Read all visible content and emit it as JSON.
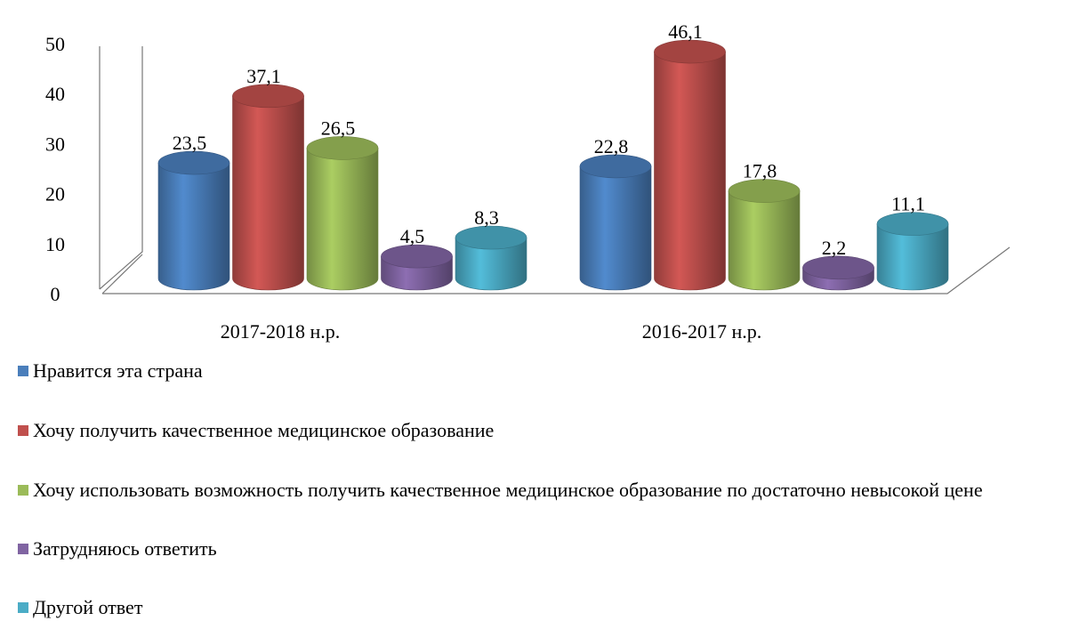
{
  "chart_data": {
    "type": "bar3d",
    "categories": [
      "2017-2018 н.р.",
      "2016-2017 н.р."
    ],
    "ylim": [
      0,
      50
    ],
    "yticks": [
      0,
      10,
      20,
      30,
      40,
      50
    ],
    "series": [
      {
        "name": "Нравится эта страна",
        "color": "#4a7ebb",
        "values": [
          23.5,
          22.8
        ],
        "value_labels": [
          "23,5",
          "22,8"
        ]
      },
      {
        "name": "Хочу получить качественное медицинское образование",
        "color": "#c0504d",
        "values": [
          37.1,
          46.1
        ],
        "value_labels": [
          "37,1",
          "46,1"
        ]
      },
      {
        "name": "Хочу использовать возможность получить качественное медицинское образование по достаточно невысокой цене",
        "color": "#9bbb59",
        "values": [
          26.5,
          17.8
        ],
        "value_labels": [
          "26,5",
          "17,8"
        ]
      },
      {
        "name": "Затрудняюсь ответить",
        "color": "#8064a2",
        "values": [
          4.5,
          2.2
        ],
        "value_labels": [
          "4,5",
          "2,2"
        ]
      },
      {
        "name": "Другой ответ",
        "color": "#4bacc6",
        "values": [
          8.3,
          11.1
        ],
        "value_labels": [
          "8,3",
          "11,1"
        ]
      }
    ]
  }
}
